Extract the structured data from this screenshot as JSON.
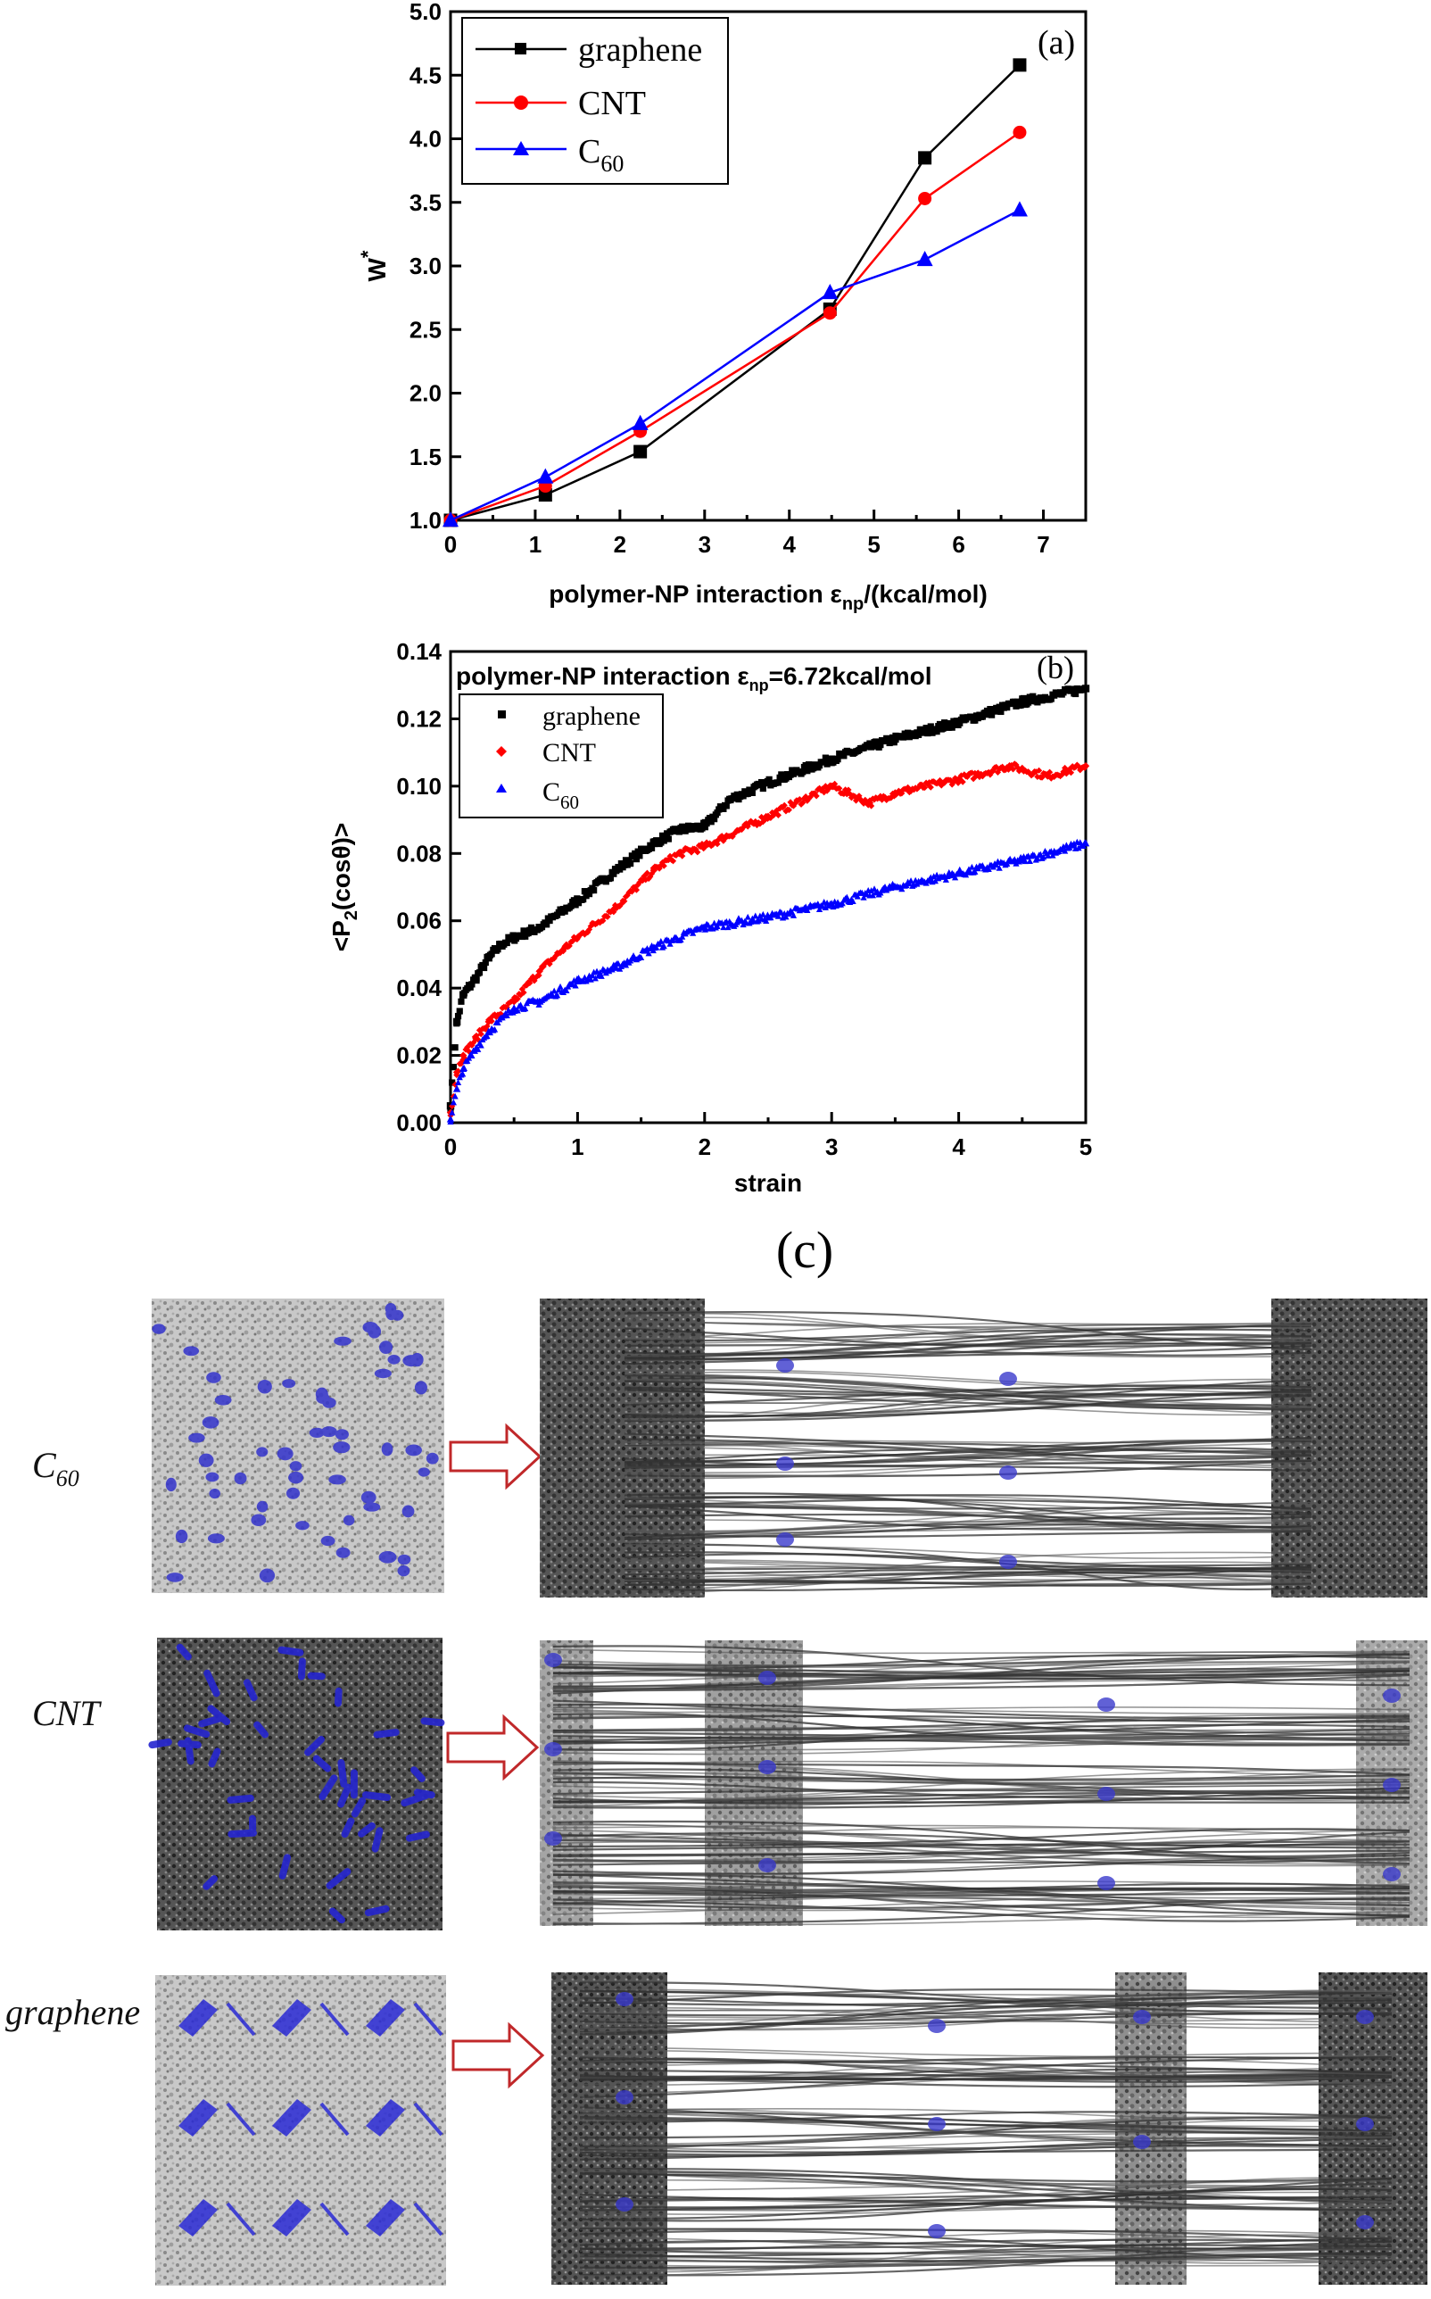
{
  "chart_data": [
    {
      "type": "line",
      "panel": "(a)",
      "xlabel": "polymer-NP interaction ε",
      "xlabel_sub": "np",
      "xlabel_tail": "/(kcal/mol)",
      "ylabel": "W",
      "ylabel_sup": "*",
      "xlim": [
        0,
        7.5
      ],
      "ylim": [
        1.0,
        5.0
      ],
      "xticks": [
        "0",
        "1",
        "2",
        "3",
        "4",
        "5",
        "6",
        "7"
      ],
      "yticks": [
        "1.0",
        "1.5",
        "2.0",
        "2.5",
        "3.0",
        "3.5",
        "4.0",
        "4.5",
        "5.0"
      ],
      "legend_position": "top-left",
      "series": [
        {
          "name": "graphene",
          "color": "#000000",
          "marker": "square",
          "x": [
            0,
            1.12,
            2.24,
            4.48,
            5.6,
            6.72
          ],
          "y": [
            1.0,
            1.2,
            1.54,
            2.66,
            3.85,
            4.58
          ]
        },
        {
          "name": "CNT",
          "color": "#ff0000",
          "marker": "circle",
          "x": [
            0,
            1.12,
            2.24,
            4.48,
            5.6,
            6.72
          ],
          "y": [
            1.0,
            1.27,
            1.7,
            2.63,
            3.53,
            4.05
          ]
        },
        {
          "name": "C",
          "name_sub": "60",
          "color": "#0000ff",
          "marker": "triangle",
          "x": [
            0,
            1.12,
            2.24,
            4.48,
            5.6,
            6.72
          ],
          "y": [
            1.0,
            1.34,
            1.76,
            2.79,
            3.05,
            3.44
          ]
        }
      ]
    },
    {
      "type": "scatter",
      "panel": "(b)",
      "annotation": "polymer-NP interaction ε",
      "annotation_sub": "np",
      "annotation_tail": "=6.72kcal/mol",
      "xlabel": "strain",
      "ylabel": "<P",
      "ylabel_sub": "2",
      "ylabel_tail": "(cosθ)>",
      "xlim": [
        0,
        5
      ],
      "ylim": [
        0.0,
        0.14
      ],
      "xticks": [
        "0",
        "1",
        "2",
        "3",
        "4",
        "5"
      ],
      "yticks": [
        "0.00",
        "0.02",
        "0.04",
        "0.06",
        "0.08",
        "0.10",
        "0.12",
        "0.14"
      ],
      "legend_position": "top-left",
      "series": [
        {
          "name": "graphene",
          "color": "#000000",
          "marker": "square",
          "x": [
            0,
            0.05,
            0.1,
            0.2,
            0.3,
            0.4,
            0.5,
            0.7,
            1.0,
            1.3,
            1.6,
            1.8,
            2.0,
            2.2,
            2.5,
            3.0,
            3.5,
            4.0,
            4.5,
            5.0
          ],
          "y": [
            0.005,
            0.03,
            0.038,
            0.043,
            0.049,
            0.053,
            0.055,
            0.058,
            0.066,
            0.075,
            0.083,
            0.087,
            0.088,
            0.096,
            0.101,
            0.108,
            0.114,
            0.119,
            0.125,
            0.129
          ]
        },
        {
          "name": "CNT",
          "color": "#ff0000",
          "marker": "diamond",
          "x": [
            0,
            0.05,
            0.1,
            0.2,
            0.3,
            0.5,
            0.7,
            0.9,
            1.0,
            1.3,
            1.6,
            1.8,
            2.0,
            2.5,
            3.0,
            3.3,
            3.5,
            4.0,
            4.4,
            4.7,
            5.0
          ],
          "y": [
            0.003,
            0.015,
            0.02,
            0.025,
            0.03,
            0.036,
            0.045,
            0.052,
            0.055,
            0.064,
            0.075,
            0.08,
            0.082,
            0.091,
            0.1,
            0.095,
            0.098,
            0.102,
            0.106,
            0.103,
            0.106
          ]
        },
        {
          "name": "C",
          "name_sub": "60",
          "color": "#0000ff",
          "marker": "triangle",
          "x": [
            0,
            0.05,
            0.1,
            0.2,
            0.3,
            0.5,
            0.7,
            1.0,
            1.3,
            1.6,
            2.0,
            2.5,
            3.0,
            3.5,
            4.0,
            4.5,
            5.0
          ],
          "y": [
            0.001,
            0.01,
            0.016,
            0.022,
            0.027,
            0.034,
            0.036,
            0.042,
            0.046,
            0.052,
            0.058,
            0.061,
            0.065,
            0.07,
            0.074,
            0.078,
            0.083
          ]
        }
      ]
    }
  ],
  "figure_c": {
    "title": "(c)",
    "rows": [
      {
        "label": "C",
        "label_sub": "60",
        "arrow": "⇨"
      },
      {
        "label": "CNT",
        "arrow": "⇨"
      },
      {
        "label": "graphene",
        "arrow": "⇨"
      }
    ]
  },
  "colors": {
    "np_blue": "#2a2ad0",
    "arrow_red": "#c0282a"
  }
}
